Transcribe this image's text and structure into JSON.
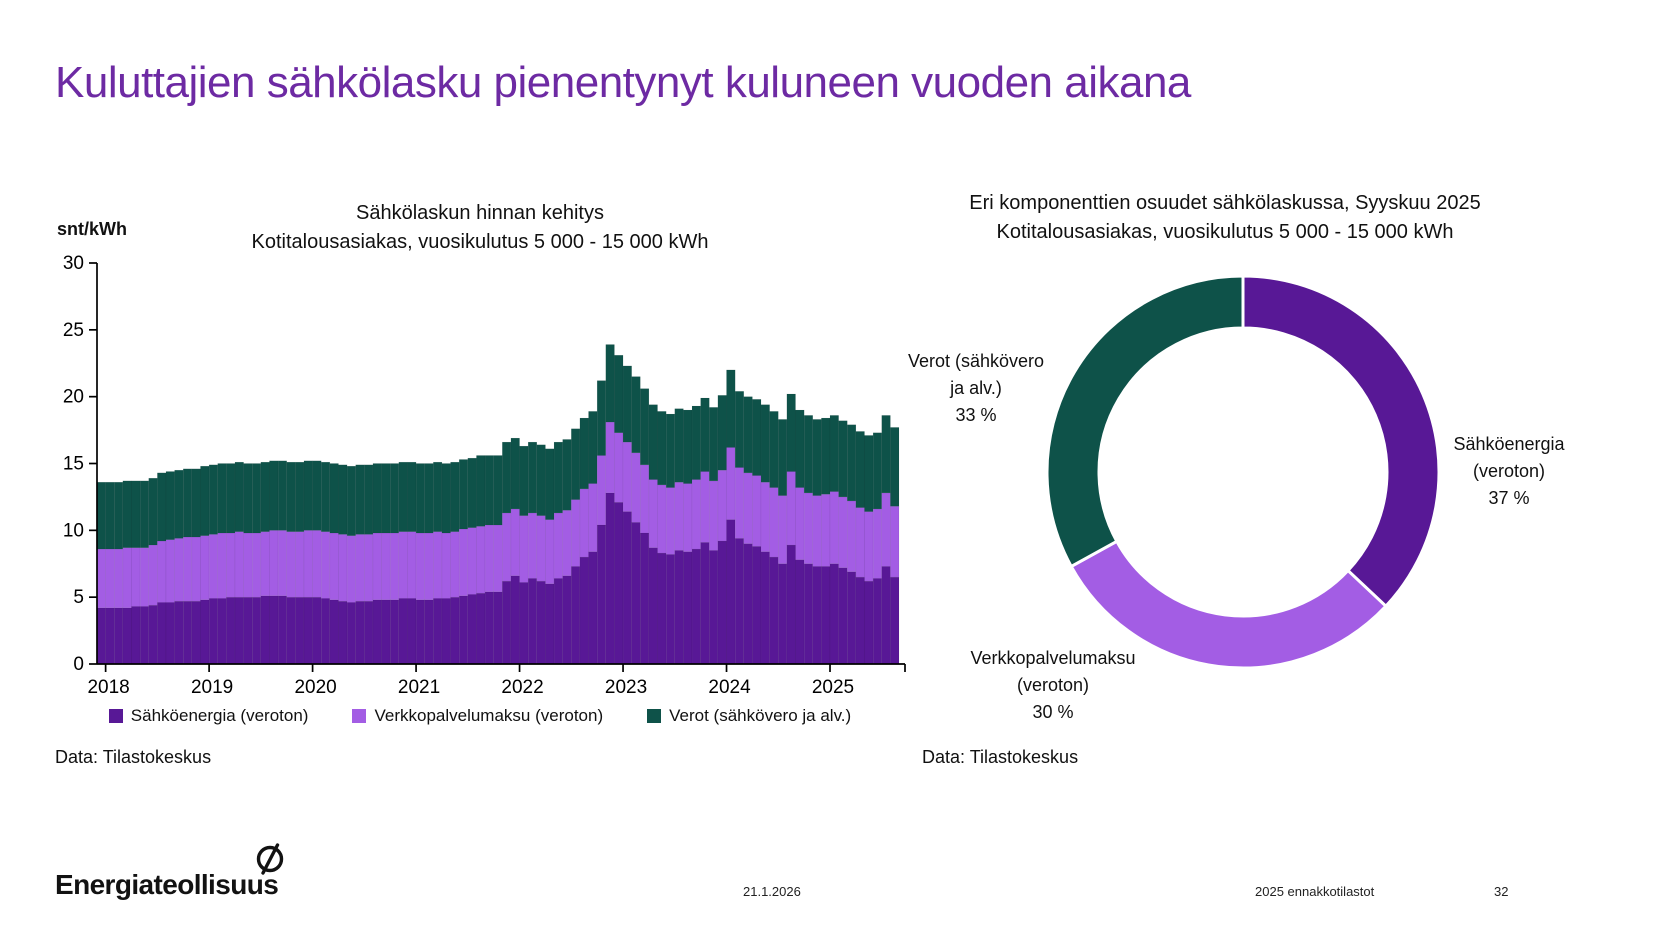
{
  "slide": {
    "title": "Kuluttajien sähkölasku pienentynyt kuluneen vuoden aikana",
    "source_left": "Data: Tilastokeskus",
    "source_right": "Data: Tilastokeskus",
    "footer": {
      "logo_text": "Energiateollisuus",
      "date": "21.1.2026",
      "report": "2025 ennakkotilastot",
      "page": "32"
    }
  },
  "colors": {
    "title": "#6d2aa3",
    "energy": "#581896",
    "network": "#a35de4",
    "taxes": "#0e5249",
    "axis": "#000000"
  },
  "chart_data": [
    {
      "type": "bar",
      "stacked": true,
      "title": "Sähkölaskun hinnan kehitys",
      "subtitle": "Kotitalousasiakas, vuosikulutus 5 000 - 15 000 kWh",
      "ylabel": "snt/kWh",
      "ylim": [
        0,
        30
      ],
      "y_ticks": [
        0,
        5,
        10,
        15,
        20,
        25,
        30
      ],
      "x_start": "2018-01",
      "x_end": "2025-09",
      "x_tick_labels": [
        "2018",
        "2019",
        "2020",
        "2021",
        "2022",
        "2023",
        "2024",
        "2025"
      ],
      "legend_position": "bottom",
      "series": [
        {
          "name": "Sähköenergia (veroton)",
          "color_key": "energy",
          "values": [
            4.2,
            4.2,
            4.2,
            4.2,
            4.3,
            4.3,
            4.4,
            4.6,
            4.6,
            4.7,
            4.7,
            4.7,
            4.8,
            4.9,
            4.9,
            5.0,
            5.0,
            5.0,
            5.0,
            5.1,
            5.1,
            5.1,
            5.0,
            5.0,
            5.0,
            5.0,
            4.9,
            4.8,
            4.7,
            4.6,
            4.7,
            4.7,
            4.8,
            4.8,
            4.8,
            4.9,
            4.9,
            4.8,
            4.8,
            4.9,
            4.9,
            5.0,
            5.1,
            5.2,
            5.3,
            5.4,
            5.4,
            6.2,
            6.6,
            6.1,
            6.4,
            6.2,
            6.0,
            6.4,
            6.6,
            7.3,
            8.0,
            8.4,
            10.4,
            12.8,
            12.1,
            11.4,
            10.6,
            9.8,
            8.7,
            8.3,
            8.2,
            8.5,
            8.4,
            8.6,
            9.1,
            8.5,
            9.2,
            10.8,
            9.4,
            9.0,
            8.8,
            8.4,
            8.0,
            7.5,
            8.9,
            7.8,
            7.5,
            7.3,
            7.3,
            7.5,
            7.2,
            6.9,
            6.5,
            6.2,
            6.4,
            7.3,
            6.5
          ]
        },
        {
          "name": "Verkkopalvelumaksu (veroton)",
          "color_key": "network",
          "values": [
            4.4,
            4.4,
            4.4,
            4.5,
            4.4,
            4.4,
            4.5,
            4.6,
            4.7,
            4.7,
            4.8,
            4.8,
            4.8,
            4.8,
            4.9,
            4.8,
            4.9,
            4.8,
            4.8,
            4.8,
            4.9,
            4.9,
            4.9,
            4.9,
            5.0,
            5.0,
            5.0,
            5.0,
            5.0,
            5.0,
            5.0,
            5.0,
            5.0,
            5.0,
            5.0,
            5.0,
            5.0,
            5.0,
            5.0,
            5.0,
            4.9,
            4.9,
            5.0,
            5.0,
            5.0,
            5.0,
            5.0,
            5.1,
            5.0,
            5.0,
            4.9,
            4.9,
            4.8,
            4.9,
            4.9,
            5.0,
            5.1,
            5.1,
            5.2,
            5.3,
            5.2,
            5.2,
            5.2,
            5.1,
            5.1,
            5.1,
            5.0,
            5.1,
            5.1,
            5.2,
            5.3,
            5.2,
            5.3,
            5.4,
            5.3,
            5.3,
            5.3,
            5.2,
            5.2,
            5.1,
            5.5,
            5.4,
            5.3,
            5.3,
            5.4,
            5.4,
            5.3,
            5.3,
            5.2,
            5.2,
            5.2,
            5.5,
            5.3
          ]
        },
        {
          "name": "Verot (sähkövero ja alv.)",
          "color_key": "taxes",
          "values": [
            5.0,
            5.0,
            5.0,
            5.0,
            5.0,
            5.0,
            5.0,
            5.1,
            5.1,
            5.1,
            5.1,
            5.1,
            5.2,
            5.2,
            5.2,
            5.2,
            5.2,
            5.2,
            5.2,
            5.2,
            5.2,
            5.2,
            5.2,
            5.2,
            5.2,
            5.2,
            5.2,
            5.2,
            5.2,
            5.2,
            5.2,
            5.2,
            5.2,
            5.2,
            5.2,
            5.2,
            5.2,
            5.2,
            5.2,
            5.2,
            5.2,
            5.2,
            5.2,
            5.2,
            5.3,
            5.2,
            5.2,
            5.3,
            5.3,
            5.2,
            5.3,
            5.3,
            5.3,
            5.3,
            5.3,
            5.3,
            5.3,
            5.4,
            5.6,
            5.8,
            5.8,
            5.7,
            5.7,
            5.7,
            5.6,
            5.5,
            5.5,
            5.5,
            5.5,
            5.5,
            5.5,
            5.5,
            5.6,
            5.8,
            5.7,
            5.7,
            5.7,
            5.8,
            5.7,
            5.7,
            5.8,
            5.8,
            5.8,
            5.7,
            5.7,
            5.7,
            5.7,
            5.7,
            5.7,
            5.7,
            5.7,
            5.8,
            5.9
          ]
        }
      ],
      "legend": [
        "Sähköenergia (veroton)",
        "Verkkopalvelumaksu (veroton)",
        "Verot (sähkövero ja alv.)"
      ]
    },
    {
      "type": "pie",
      "donut": true,
      "title": "Eri komponenttien osuudet sähkölaskussa, Syyskuu 2025",
      "subtitle": "Kotitalousasiakas, vuosikulutus 5 000 - 15 000 kWh",
      "start_angle_deg": -90,
      "direction": "clockwise",
      "slices": [
        {
          "name": "Sähköenergia (veroton)",
          "value": 37,
          "color_key": "energy",
          "label_lines": [
            "Sähköenergia",
            "(veroton)",
            "37 %"
          ]
        },
        {
          "name": "Verkkopalvelumaksu (veroton)",
          "value": 30,
          "color_key": "network",
          "label_lines": [
            "Verkkopalvelumaksu",
            "(veroton)",
            "30 %"
          ]
        },
        {
          "name": "Verot (sähkövero ja alv.)",
          "value": 33,
          "color_key": "taxes",
          "label_lines": [
            "Verot (sähkövero",
            "ja alv.)",
            "33 %"
          ]
        }
      ]
    }
  ]
}
